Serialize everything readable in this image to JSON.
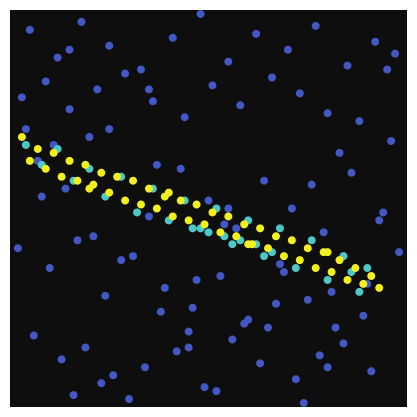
{
  "chart_data": {
    "type": "scatter",
    "xlim": [
      0,
      100
    ],
    "ylim": [
      0,
      100
    ],
    "background": "#0e0e0e",
    "series": [
      {
        "color": "#4358c4",
        "x": [
          5,
          12,
          18,
          25,
          33,
          41,
          48,
          55,
          62,
          70,
          77,
          85,
          92,
          97,
          3,
          9,
          15,
          22,
          29,
          36,
          44,
          51,
          58,
          66,
          73,
          80,
          88,
          95,
          7,
          14,
          20,
          27,
          35,
          43,
          50,
          57,
          64,
          71,
          79,
          86,
          93,
          2,
          10,
          17,
          24,
          31,
          39,
          46,
          53,
          60,
          68,
          75,
          82,
          90,
          98,
          6,
          13,
          19,
          26,
          34,
          42,
          49,
          56,
          63,
          72,
          78,
          84,
          91,
          4,
          11,
          16,
          23,
          30,
          38,
          45,
          52,
          59,
          67,
          74,
          81,
          89,
          96,
          8,
          21,
          28,
          37,
          47,
          54,
          61,
          69,
          76,
          83,
          94,
          15,
          25,
          45,
          55,
          80,
          65,
          35
        ],
        "values": [
          95,
          88,
          97,
          91,
          85,
          93,
          99,
          87,
          94,
          90,
          96,
          86,
          92,
          89,
          78,
          82,
          75,
          80,
          84,
          77,
          73,
          81,
          76,
          83,
          79,
          74,
          72,
          85,
          62,
          55,
          68,
          58,
          48,
          60,
          52,
          45,
          57,
          50,
          44,
          59,
          47,
          40,
          35,
          42,
          28,
          38,
          30,
          25,
          33,
          22,
          36,
          27,
          20,
          31,
          39,
          18,
          12,
          15,
          8,
          10,
          14,
          5,
          17,
          11,
          7,
          13,
          16,
          9,
          70,
          66,
          3,
          6,
          2,
          24,
          19,
          4,
          21,
          26,
          1,
          29,
          23,
          67,
          53,
          43,
          37,
          61,
          32,
          46,
          41,
          34,
          56,
          64,
          49,
          90,
          70,
          15,
          50,
          10,
          20,
          80
        ]
      },
      {
        "color": "#4cc8c8",
        "x": [
          4,
          8,
          12,
          16,
          20,
          24,
          28,
          32,
          36,
          40,
          44,
          48,
          52,
          56,
          60,
          64,
          68,
          72,
          76,
          80,
          84,
          88,
          90,
          86,
          46,
          50,
          54,
          58,
          62,
          66
        ],
        "values": [
          66,
          61,
          65,
          57,
          60,
          53,
          58,
          49,
          55,
          47,
          52,
          45,
          50,
          41,
          47,
          38,
          45,
          35,
          42,
          32,
          38,
          29,
          35,
          34,
          45,
          44,
          43,
          42,
          41,
          39
        ]
      },
      {
        "color": "#f2f01e",
        "x": [
          3,
          5,
          7,
          9,
          11,
          13,
          15,
          17,
          19,
          21,
          23,
          25,
          27,
          29,
          31,
          33,
          35,
          37,
          39,
          41,
          43,
          45,
          47,
          49,
          51,
          53,
          55,
          57,
          59,
          61,
          63,
          65,
          67,
          69,
          71,
          73,
          75,
          77,
          79,
          81,
          83,
          85,
          87,
          89,
          91,
          93,
          20,
          40,
          60,
          80
        ],
        "values": [
          68,
          62,
          65,
          60,
          64,
          58,
          62,
          57,
          61,
          56,
          59,
          54,
          58,
          52,
          57,
          51,
          55,
          50,
          53,
          48,
          52,
          47,
          51,
          46,
          49,
          44,
          48,
          43,
          46,
          41,
          45,
          40,
          43,
          38,
          42,
          37,
          40,
          35,
          39,
          34,
          37,
          32,
          35,
          31,
          33,
          30,
          55,
          54,
          41,
          39
        ]
      }
    ]
  }
}
